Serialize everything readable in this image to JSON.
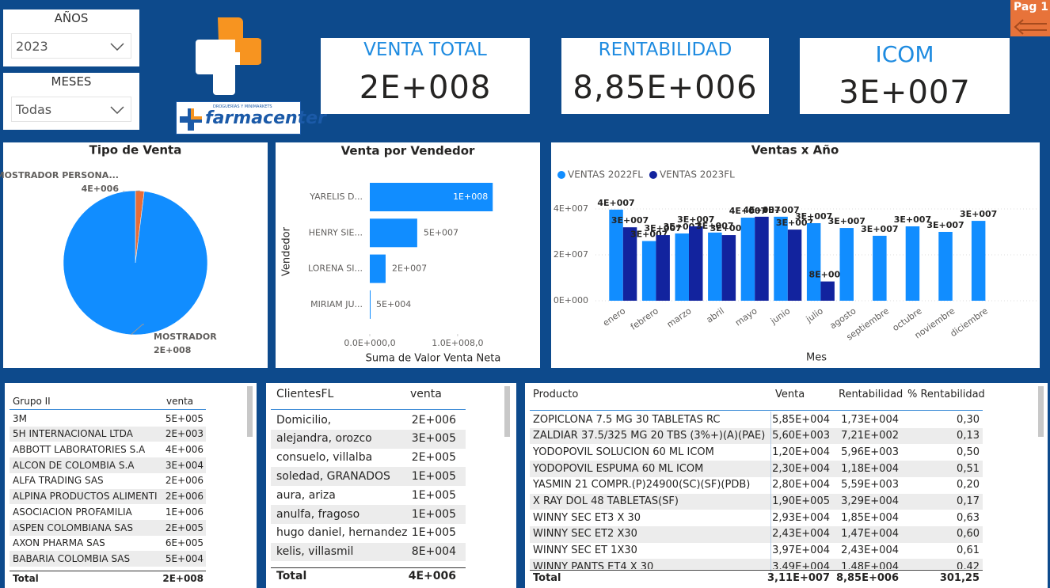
{
  "filters": [
    {
      "label": "AÑOS",
      "value": "2023"
    },
    {
      "label": "MESES",
      "value": "Todas"
    }
  ],
  "logo": {
    "tagline": "DROGUERÍAS Y MINIMARKETS",
    "brand": "farmacenter"
  },
  "page_button": "Pag 1",
  "kpis": [
    {
      "label": "VENTA TOTAL",
      "value": "2E+008"
    },
    {
      "label": "RENTABILIDAD",
      "value": "8,85E+006"
    },
    {
      "label": "ICOM",
      "value": "3E+007"
    }
  ],
  "chart_data": [
    {
      "type": "pie",
      "title": "Tipo de Venta",
      "categories": [
        "MOSTRADOR PERSONA...",
        "MOSTRADOR"
      ],
      "values": [
        4000000,
        200000000
      ],
      "value_labels": [
        "4E+006",
        "2E+008"
      ],
      "colors": [
        "#e66c37",
        "#118dff"
      ]
    },
    {
      "type": "hbar",
      "title": "Venta por Vendedor",
      "categories": [
        "YARELIS D...",
        "HENRY SIE...",
        "LORENA SI...",
        "MIRIAM JU..."
      ],
      "values": [
        140000000,
        54000000,
        18000000,
        50000
      ],
      "value_labels": [
        "1E+008",
        "5E+007",
        "2E+007",
        "5E+004"
      ],
      "color": "#118dff",
      "xlim": [
        0,
        147000000
      ],
      "xticks": [
        {
          "value": 0,
          "label": "0.0E+000,0"
        },
        {
          "value": 100000000,
          "label": "1.0E+008,0"
        }
      ],
      "x_label": "Suma de Valor Venta Neta",
      "y_label": "Vendedor"
    },
    {
      "type": "bar",
      "title": "Ventas x Año",
      "categories": [
        "enero",
        "febrero",
        "marzo",
        "abril",
        "mayo",
        "junio",
        "julio",
        "agosto",
        "septiembre",
        "octubre",
        "noviembre",
        "diciembre"
      ],
      "series": [
        {
          "name": "VENTAS 2022FL",
          "color": "#118dff",
          "values": [
            39700000,
            26000000,
            29300000,
            29700000,
            36200000,
            36600000,
            33800000,
            31700000,
            28300000,
            32400000,
            30000000,
            34800000
          ],
          "value_labels": [
            "4E+007",
            "3E+007",
            "3E+007",
            "3E+007",
            "4E+007",
            "4E+007",
            "3E+007",
            "3E+007",
            "3E+007",
            "3E+007",
            "3E+007",
            "3E+007"
          ]
        },
        {
          "name": "VENTAS 2023FL",
          "color": "#12239e",
          "values": [
            32000000,
            28600000,
            32400000,
            28600000,
            36600000,
            31000000,
            8400000,
            null,
            null,
            null,
            null,
            null
          ],
          "value_labels": [
            "3E+007",
            "3E+007",
            "3E+007",
            "3E+007",
            "4E+007",
            "3E+007",
            "8E+006",
            null,
            null,
            null,
            null,
            null
          ]
        }
      ],
      "ylim": [
        0,
        46000000
      ],
      "yticks": [
        {
          "value": 0,
          "label": "0E+000"
        },
        {
          "value": 20000000,
          "label": "2E+007"
        },
        {
          "value": 40000000,
          "label": "4E+007"
        }
      ],
      "grid": true,
      "x_label": "Mes",
      "legend": "top-left"
    }
  ],
  "tables": [
    {
      "columns": [
        "Grupo II",
        "venta"
      ],
      "rows": [
        [
          "3M",
          "5E+005"
        ],
        [
          "5H INTERNACIONAL LTDA",
          "2E+003"
        ],
        [
          "ABBOTT LABORATORIES S.A",
          "4E+006"
        ],
        [
          "ALCON DE COLOMBIA S.A",
          "3E+004"
        ],
        [
          "ALFA TRADING SAS",
          "2E+006"
        ],
        [
          "ALPINA PRODUCTOS ALIMENTI",
          "2E+006"
        ],
        [
          "ASOCIACION PROFAMILIA",
          "1E+006"
        ],
        [
          "ASPEN COLOMBIANA SAS",
          "2E+005"
        ],
        [
          "AXON PHARMA SAS",
          "6E+005"
        ],
        [
          "BABARIA COLOMBIA SAS",
          "5E+004"
        ]
      ],
      "total": [
        "Total",
        "2E+008"
      ]
    },
    {
      "columns": [
        "ClientesFL",
        "venta"
      ],
      "rows": [
        [
          "Domicilio,",
          "2E+006"
        ],
        [
          "alejandra, orozco",
          "3E+005"
        ],
        [
          "consuelo, villalba",
          "2E+005"
        ],
        [
          "soledad, GRANADOS",
          "1E+005"
        ],
        [
          "aura, ariza",
          "1E+005"
        ],
        [
          "anulfa, fragoso",
          "1E+005"
        ],
        [
          "hugo daniel, hernandez",
          "1E+005"
        ],
        [
          "kelis, villasmil",
          "8E+004"
        ]
      ],
      "total": [
        "Total",
        "4E+006"
      ]
    },
    {
      "columns": [
        "Producto",
        "Venta",
        "Rentabilidad",
        "% Rentabilidad"
      ],
      "rows": [
        [
          "ZOPICLONA 7.5 MG 30 TABLETAS RC",
          "5,85E+004",
          "1,73E+004",
          "0,30"
        ],
        [
          "ZALDIAR 37.5/325 MG 20 TBS (3%+)(A)(PAE)",
          "5,60E+003",
          "7,21E+002",
          "0,13"
        ],
        [
          "YODOPOVIL SOLUCION 60 ML ICOM",
          "1,20E+004",
          "5,96E+003",
          "0,50"
        ],
        [
          "YODOPOVIL ESPUMA 60 ML ICOM",
          "2,30E+004",
          "1,18E+004",
          "0,51"
        ],
        [
          "YASMIN 21 COMPR.(P)24900(SC)(SF)(PDB)",
          "2,80E+004",
          "5,59E+003",
          "0,20"
        ],
        [
          "X RAY DOL 48 TABLETAS(SF)",
          "1,90E+005",
          "3,29E+004",
          "0,17"
        ],
        [
          "WINNY SEC ET3 X 30",
          "2,93E+004",
          "1,85E+004",
          "0,63"
        ],
        [
          "WINNY SEC ET2 X30",
          "2,43E+004",
          "1,47E+004",
          "0,60"
        ],
        [
          "WINNY SEC ET 1X30",
          "3,97E+004",
          "2,43E+004",
          "0,61"
        ],
        [
          "WINNY PANTS ET4 X 30",
          "3,49E+004",
          "1,48E+004",
          "0,42"
        ]
      ],
      "total": [
        "Total",
        "3,11E+007",
        "8,85E+006",
        "301,25"
      ]
    }
  ]
}
